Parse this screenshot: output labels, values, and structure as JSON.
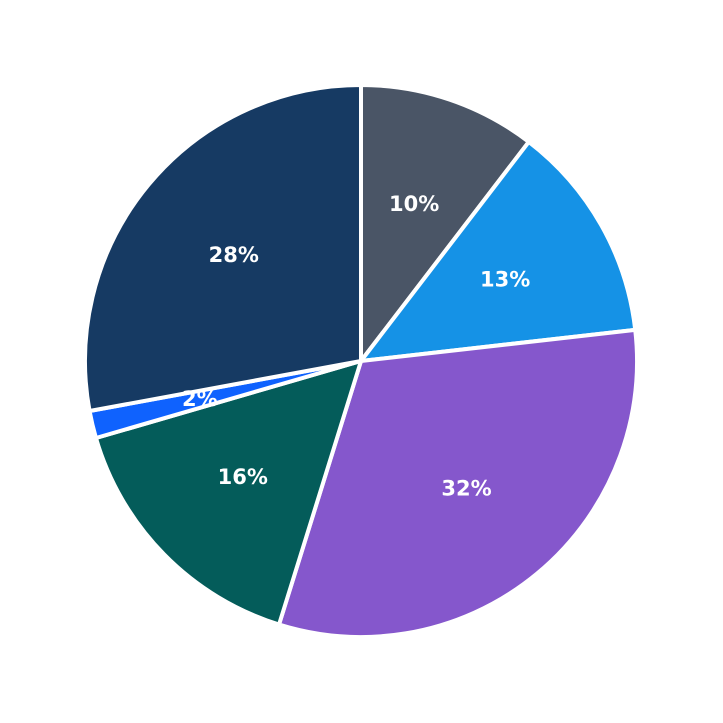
{
  "chart_data": {
    "type": "pie",
    "title": "",
    "start_angle_deg": 0,
    "direction": "clockwise",
    "slices": [
      {
        "label": "10%",
        "value": 10.4,
        "color": "#4a5566"
      },
      {
        "label": "13%",
        "value": 12.8,
        "color": "#1592e6"
      },
      {
        "label": "32%",
        "value": 31.6,
        "color": "#8557cc"
      },
      {
        "label": "16%",
        "value": 15.7,
        "color": "#045c5a"
      },
      {
        "label": "2%",
        "value": 1.6,
        "color": "#0f62fe"
      },
      {
        "label": "28%",
        "value": 27.9,
        "color": "#163a63"
      }
    ],
    "legend": null
  }
}
